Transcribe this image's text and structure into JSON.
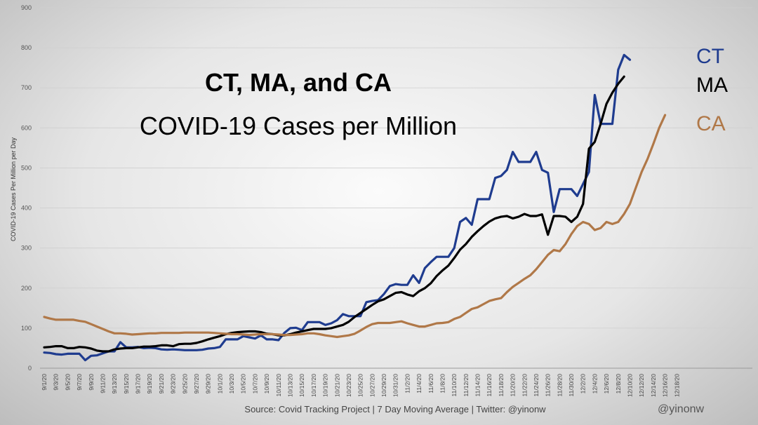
{
  "chart_data": {
    "type": "line",
    "title": "CT, MA, and CA",
    "subtitle": "COVID-19 Cases per Million",
    "ylabel": "COVID-19 Cases Per Million per Day",
    "xlabel": "",
    "ylim": [
      0,
      900
    ],
    "yticks": [
      0,
      100,
      200,
      300,
      400,
      500,
      600,
      700,
      800,
      900
    ],
    "grid": true,
    "xtick_labels": [
      "9/1/20",
      "9/3/20",
      "9/5/20",
      "9/7/20",
      "9/9/20",
      "9/11/20",
      "9/13/20",
      "9/15/20",
      "9/17/20",
      "9/19/20",
      "9/21/20",
      "9/23/20",
      "9/25/20",
      "9/27/20",
      "9/29/20",
      "10/1/20",
      "10/3/20",
      "10/5/20",
      "10/7/20",
      "10/9/20",
      "10/11/20",
      "10/13/20",
      "10/15/20",
      "10/17/20",
      "10/19/20",
      "10/21/20",
      "10/23/20",
      "10/25/20",
      "10/27/20",
      "10/29/20",
      "10/31/20",
      "11/2/20",
      "11/4/20",
      "11/6/20",
      "11/8/20",
      "11/10/20",
      "11/12/20",
      "11/14/20",
      "11/16/20",
      "11/18/20",
      "11/20/20",
      "11/22/20",
      "11/24/20",
      "11/26/20",
      "11/28/20",
      "11/30/20",
      "12/2/20",
      "12/4/20",
      "12/6/20",
      "12/8/20",
      "12/10/20",
      "12/12/20",
      "12/14/20",
      "12/16/20",
      "12/18/20"
    ],
    "series": [
      {
        "name": "CT",
        "color": "#1f3c8f",
        "values": [
          39,
          38,
          35,
          34,
          36,
          36,
          36,
          20,
          31,
          32,
          37,
          42,
          42,
          65,
          52,
          52,
          53,
          50,
          51,
          50,
          47,
          46,
          47,
          46,
          45,
          45,
          45,
          46,
          49,
          50,
          53,
          72,
          72,
          72,
          80,
          77,
          74,
          82,
          72,
          72,
          70,
          88,
          100,
          101,
          95,
          115,
          115,
          115,
          108,
          112,
          120,
          135,
          130,
          130,
          130,
          165,
          168,
          170,
          185,
          205,
          210,
          208,
          208,
          232,
          213,
          250,
          265,
          278,
          278,
          278,
          300,
          365,
          375,
          358,
          422,
          422,
          422,
          475,
          480,
          495,
          540,
          515,
          515,
          515,
          540,
          495,
          488,
          390,
          447,
          447,
          447,
          430,
          460,
          490,
          682,
          610,
          610,
          610,
          745,
          782,
          770
        ]
      },
      {
        "name": "MA",
        "color": "#000000",
        "values": [
          52,
          53,
          55,
          55,
          50,
          50,
          53,
          52,
          49,
          44,
          42,
          42,
          47,
          49,
          50,
          50,
          52,
          54,
          54,
          55,
          57,
          57,
          55,
          60,
          61,
          61,
          63,
          67,
          72,
          76,
          80,
          85,
          88,
          90,
          91,
          92,
          92,
          90,
          86,
          85,
          82,
          82,
          85,
          89,
          92,
          95,
          98,
          98,
          98,
          100,
          104,
          108,
          116,
          128,
          138,
          148,
          158,
          167,
          172,
          180,
          188,
          190,
          184,
          180,
          192,
          200,
          212,
          230,
          244,
          256,
          275,
          296,
          310,
          328,
          342,
          355,
          366,
          374,
          378,
          380,
          374,
          378,
          385,
          380,
          380,
          384,
          333,
          380,
          380,
          378,
          365,
          378,
          410,
          548,
          565,
          610,
          660,
          688,
          710,
          728
        ]
      },
      {
        "name": "CA",
        "color": "#b07848",
        "values": [
          128,
          124,
          121,
          121,
          121,
          121,
          118,
          116,
          110,
          104,
          98,
          92,
          87,
          87,
          86,
          84,
          85,
          86,
          87,
          87,
          88,
          88,
          88,
          88,
          89,
          89,
          89,
          89,
          89,
          88,
          87,
          86,
          85,
          85,
          84,
          83,
          84,
          85,
          85,
          85,
          84,
          83,
          83,
          84,
          85,
          87,
          87,
          85,
          82,
          80,
          78,
          80,
          82,
          86,
          94,
          103,
          110,
          113,
          113,
          113,
          115,
          117,
          112,
          108,
          104,
          104,
          108,
          112,
          113,
          115,
          123,
          128,
          138,
          148,
          152,
          160,
          168,
          172,
          175,
          190,
          203,
          213,
          223,
          232,
          247,
          265,
          283,
          295,
          292,
          310,
          335,
          355,
          365,
          360,
          345,
          350,
          365,
          360,
          365,
          385,
          410,
          450,
          490,
          522,
          560,
          600,
          632
        ]
      }
    ],
    "series_labels": [
      "CT",
      "MA",
      "CA"
    ],
    "source_note": "Source: Covid Tracking Project | 7 Day Moving Average | Twitter: @yinonw",
    "credit": "@yinonw"
  }
}
